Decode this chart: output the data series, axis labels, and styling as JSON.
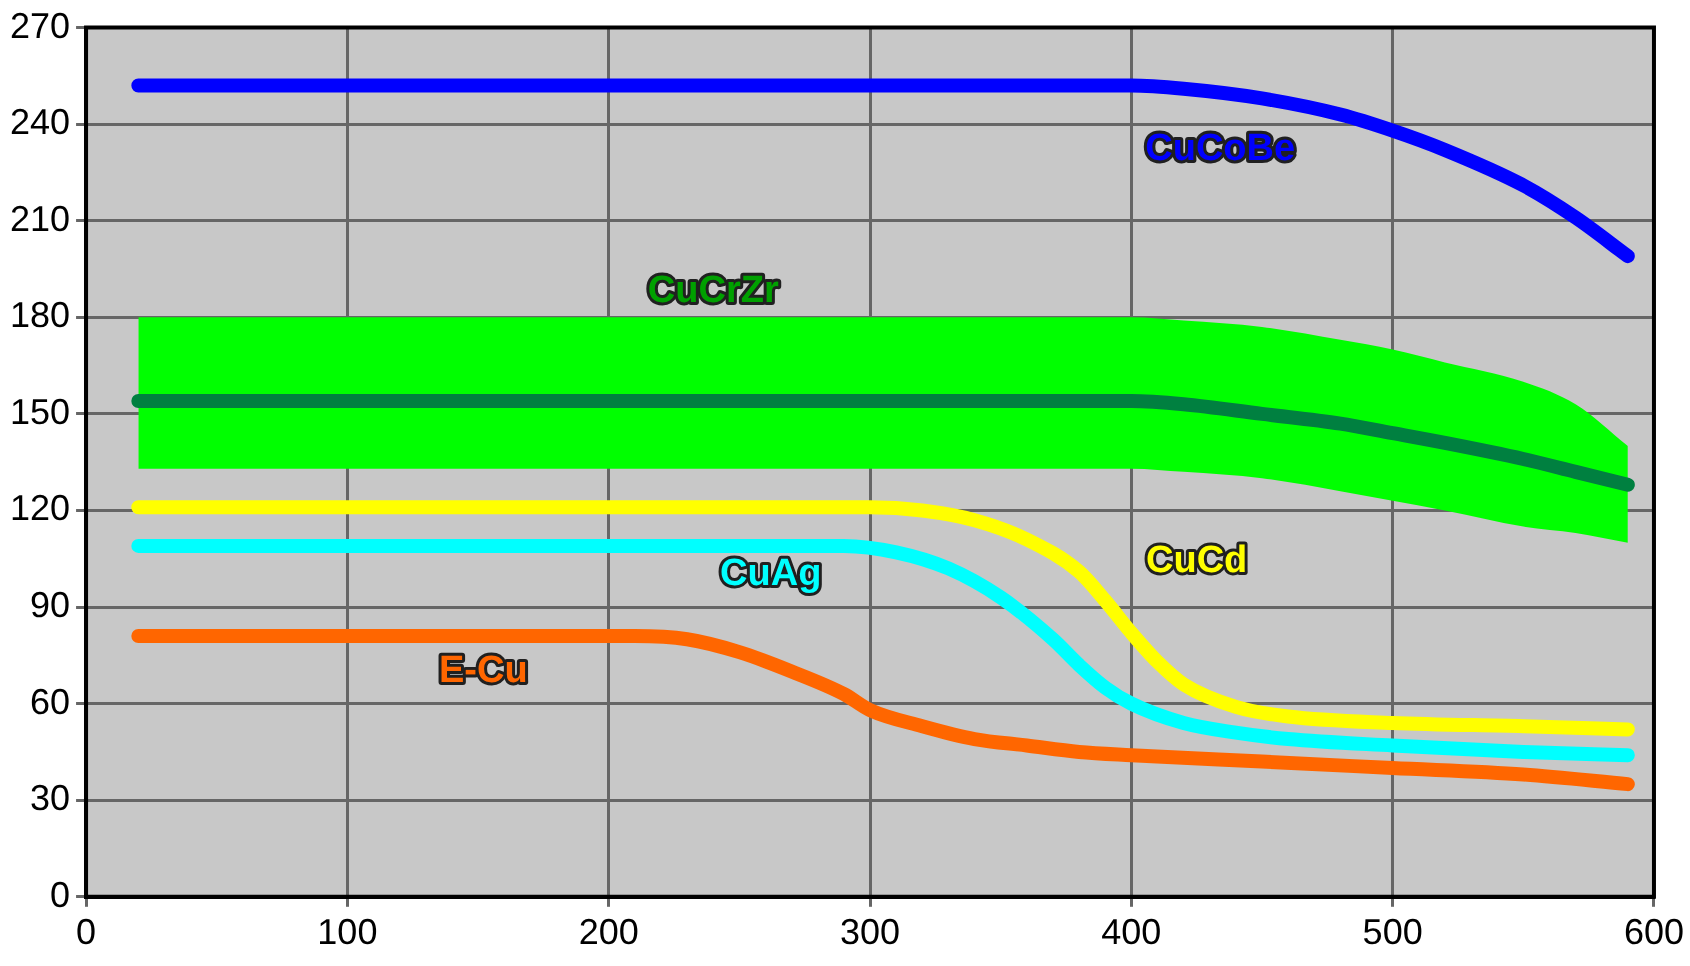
{
  "chart_data": {
    "type": "line",
    "xlim": [
      0,
      600
    ],
    "xticks": [
      0,
      100,
      200,
      300,
      400,
      500,
      600
    ],
    "ylim": [
      0,
      270
    ],
    "yticks": [
      0,
      30,
      60,
      90,
      120,
      150,
      180,
      210,
      240,
      270
    ],
    "grid": true,
    "legend": false,
    "marker": "none",
    "line_style": "solid",
    "series": [
      {
        "name": "CuCoBe",
        "color": "#0000ff",
        "x": [
          20,
          100,
          200,
          300,
          400,
          420,
          450,
          480,
          500,
          520,
          550,
          570,
          590
        ],
        "values": [
          252,
          252,
          252,
          252,
          252,
          251,
          248,
          243,
          238,
          232,
          221,
          211,
          199
        ]
      },
      {
        "name": "CuCrZr",
        "color": "#008040",
        "x": [
          20,
          100,
          200,
          300,
          400,
          420,
          450,
          480,
          500,
          520,
          550,
          570,
          590
        ],
        "values": [
          154,
          154,
          154,
          154,
          154,
          153,
          150,
          147,
          144,
          141,
          136,
          132,
          128
        ],
        "lower": [
          133,
          133,
          133,
          133,
          133,
          132,
          130,
          126,
          123,
          120,
          115,
          113,
          110
        ],
        "upper": [
          180,
          180,
          180,
          180,
          180,
          179,
          177,
          173,
          170,
          166,
          160,
          153,
          140
        ]
      },
      {
        "name": "CuCd",
        "color": "#ffff00",
        "x": [
          20,
          100,
          200,
          300,
          320,
          340,
          360,
          380,
          390,
          400,
          410,
          420,
          440,
          460,
          500,
          550,
          590
        ],
        "values": [
          121,
          121,
          121,
          121,
          120,
          117,
          111,
          101,
          92,
          82,
          73,
          66,
          59,
          56,
          54,
          53,
          52
        ]
      },
      {
        "name": "CuAg",
        "color": "#00ffff",
        "x": [
          20,
          100,
          200,
          290,
          310,
          330,
          350,
          370,
          380,
          390,
          400,
          420,
          440,
          460,
          500,
          550,
          590
        ],
        "values": [
          109,
          109,
          109,
          109,
          107,
          102,
          93,
          80,
          72,
          65,
          60,
          54,
          51,
          49,
          47,
          45,
          44
        ]
      },
      {
        "name": "E-Cu",
        "color": "#ff6600",
        "x": [
          20,
          100,
          200,
          210,
          230,
          250,
          270,
          290,
          300,
          320,
          340,
          360,
          380,
          400,
          450,
          500,
          550,
          590
        ],
        "values": [
          81,
          81,
          81,
          81,
          80,
          76,
          70,
          63,
          58,
          53,
          49,
          47,
          45,
          44,
          42,
          40,
          38,
          35
        ]
      }
    ]
  }
}
